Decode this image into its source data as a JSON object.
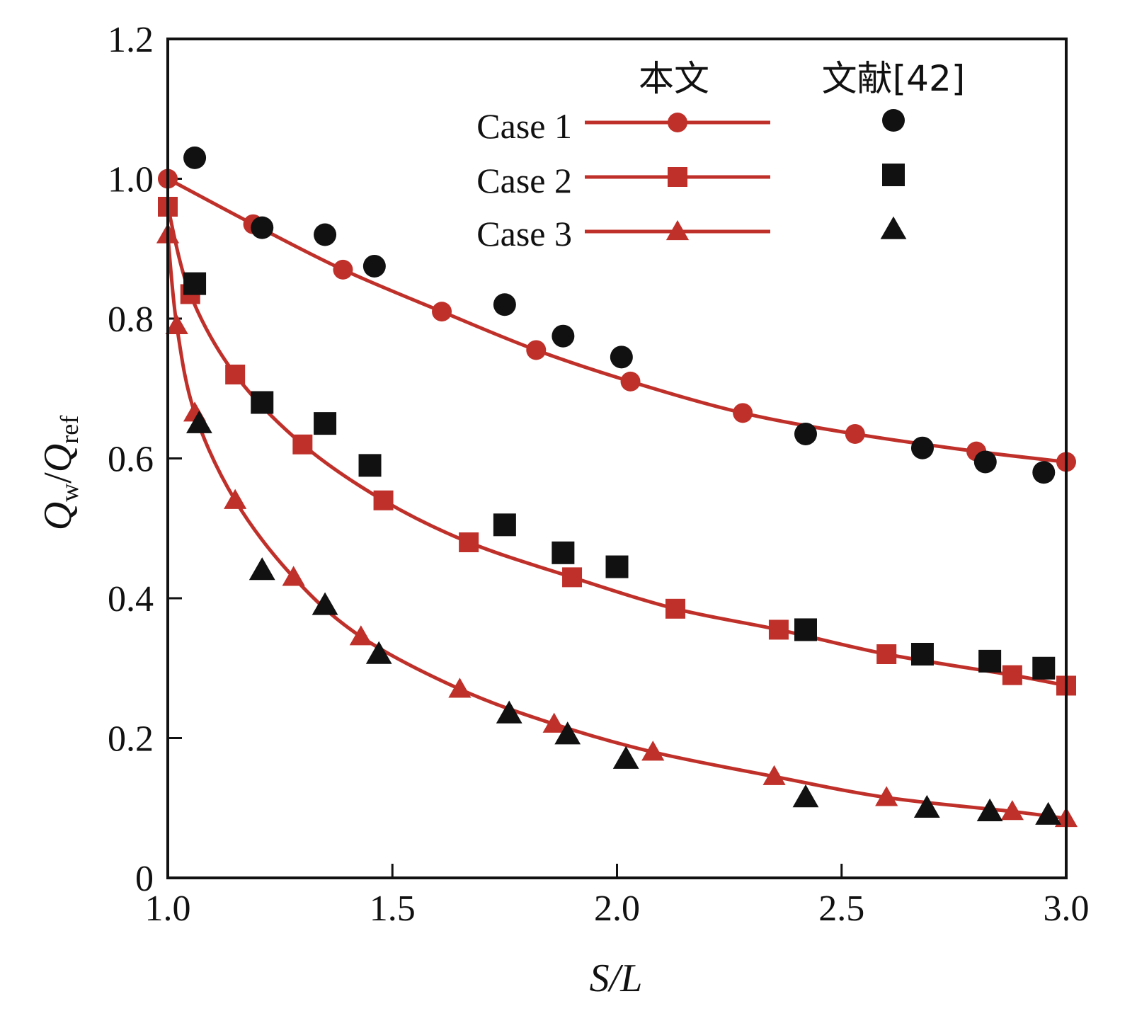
{
  "chart_data": {
    "type": "line",
    "title": "",
    "xlabel": "S/L",
    "ylabel": {
      "q1": "Q",
      "sub1": "w",
      "sep": "/",
      "q2": "Q",
      "sub2": "ref"
    },
    "xlim": [
      1.0,
      3.0
    ],
    "ylim": [
      0,
      1.2
    ],
    "xticks": [
      1.0,
      1.5,
      2.0,
      2.5,
      3.0
    ],
    "xtick_labels": [
      "1.0",
      "1.5",
      "2.0",
      "2.5",
      "3.0"
    ],
    "yticks": [
      0,
      0.2,
      0.4,
      0.6,
      0.8,
      1.0,
      1.2
    ],
    "ytick_labels": [
      "0",
      "0.2",
      "0.4",
      "0.6",
      "0.8",
      "1.0",
      "1.2"
    ],
    "legend": {
      "position": "top-right",
      "header_model": "本文",
      "header_ref": "文献[42]",
      "entries": [
        "Case 1",
        "Case 2",
        "Case 3"
      ]
    },
    "colors": {
      "model": "#c0302a",
      "reference": "#111111"
    },
    "series": [
      {
        "name": "Case 1",
        "source": "本文",
        "marker": "circle",
        "x": [
          1.0,
          1.19,
          1.39,
          1.61,
          1.82,
          2.03,
          2.28,
          2.53,
          2.8,
          3.0
        ],
        "y": [
          1.0,
          0.935,
          0.87,
          0.81,
          0.755,
          0.71,
          0.665,
          0.635,
          0.61,
          0.595
        ]
      },
      {
        "name": "Case 2",
        "source": "本文",
        "marker": "square",
        "x": [
          1.0,
          1.05,
          1.15,
          1.3,
          1.48,
          1.67,
          1.9,
          2.13,
          2.36,
          2.6,
          2.88,
          3.0
        ],
        "y": [
          0.96,
          0.835,
          0.72,
          0.62,
          0.54,
          0.48,
          0.43,
          0.385,
          0.355,
          0.32,
          0.29,
          0.275
        ]
      },
      {
        "name": "Case 3",
        "source": "本文",
        "marker": "triangle",
        "x": [
          1.0,
          1.02,
          1.06,
          1.15,
          1.28,
          1.43,
          1.65,
          1.86,
          2.08,
          2.35,
          2.6,
          2.88,
          3.0
        ],
        "y": [
          0.92,
          0.79,
          0.665,
          0.54,
          0.43,
          0.345,
          0.27,
          0.22,
          0.18,
          0.145,
          0.115,
          0.095,
          0.085
        ]
      },
      {
        "name": "Case 1",
        "source": "文献[42]",
        "marker": "circle",
        "x": [
          1.06,
          1.21,
          1.35,
          1.46,
          1.75,
          1.88,
          2.01,
          2.42,
          2.68,
          2.82,
          2.95
        ],
        "y": [
          1.03,
          0.93,
          0.92,
          0.875,
          0.82,
          0.775,
          0.745,
          0.635,
          0.615,
          0.595,
          0.58
        ]
      },
      {
        "name": "Case 2",
        "source": "文献[42]",
        "marker": "square",
        "x": [
          1.06,
          1.21,
          1.35,
          1.45,
          1.75,
          1.88,
          2.0,
          2.42,
          2.68,
          2.83,
          2.95
        ],
        "y": [
          0.85,
          0.68,
          0.65,
          0.59,
          0.505,
          0.465,
          0.445,
          0.355,
          0.32,
          0.31,
          0.3
        ]
      },
      {
        "name": "Case 3",
        "source": "文献[42]",
        "marker": "triangle",
        "x": [
          1.07,
          1.21,
          1.35,
          1.47,
          1.76,
          1.89,
          2.02,
          2.42,
          2.69,
          2.83,
          2.96
        ],
        "y": [
          0.65,
          0.44,
          0.39,
          0.32,
          0.235,
          0.205,
          0.17,
          0.115,
          0.1,
          0.095,
          0.09
        ]
      }
    ]
  }
}
